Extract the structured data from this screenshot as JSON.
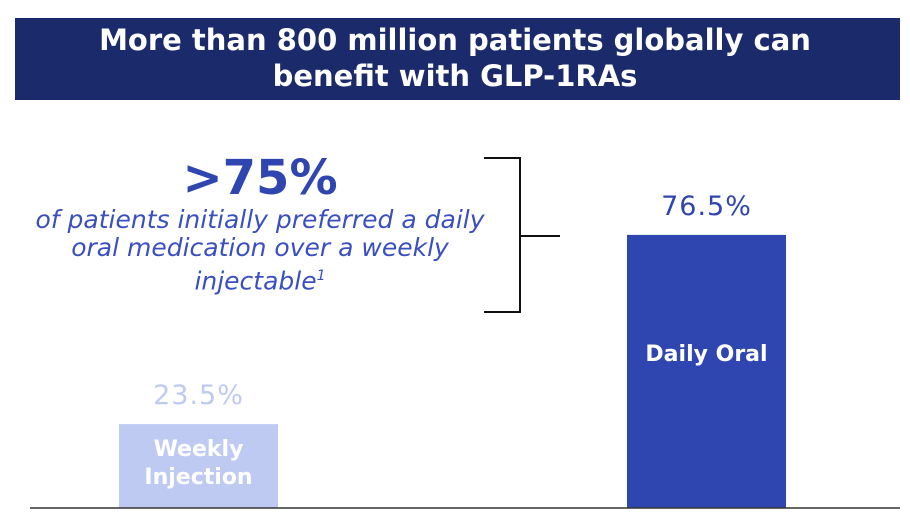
{
  "chart_data": {
    "type": "bar",
    "title": "More than 800 million patients globally can benefit with GLP-1RAs",
    "annotation": {
      "headline": ">75%",
      "text": "of patients initially preferred a daily oral medication over a weekly injectable",
      "footnote": "1"
    },
    "categories": [
      "Weekly Injection",
      "Daily Oral"
    ],
    "values": [
      23.5,
      76.5
    ],
    "value_labels": [
      "23.5%",
      "76.5%"
    ],
    "colors": [
      "#bfcaf3",
      "#2f45b0"
    ],
    "ylim": [
      0,
      100
    ]
  }
}
